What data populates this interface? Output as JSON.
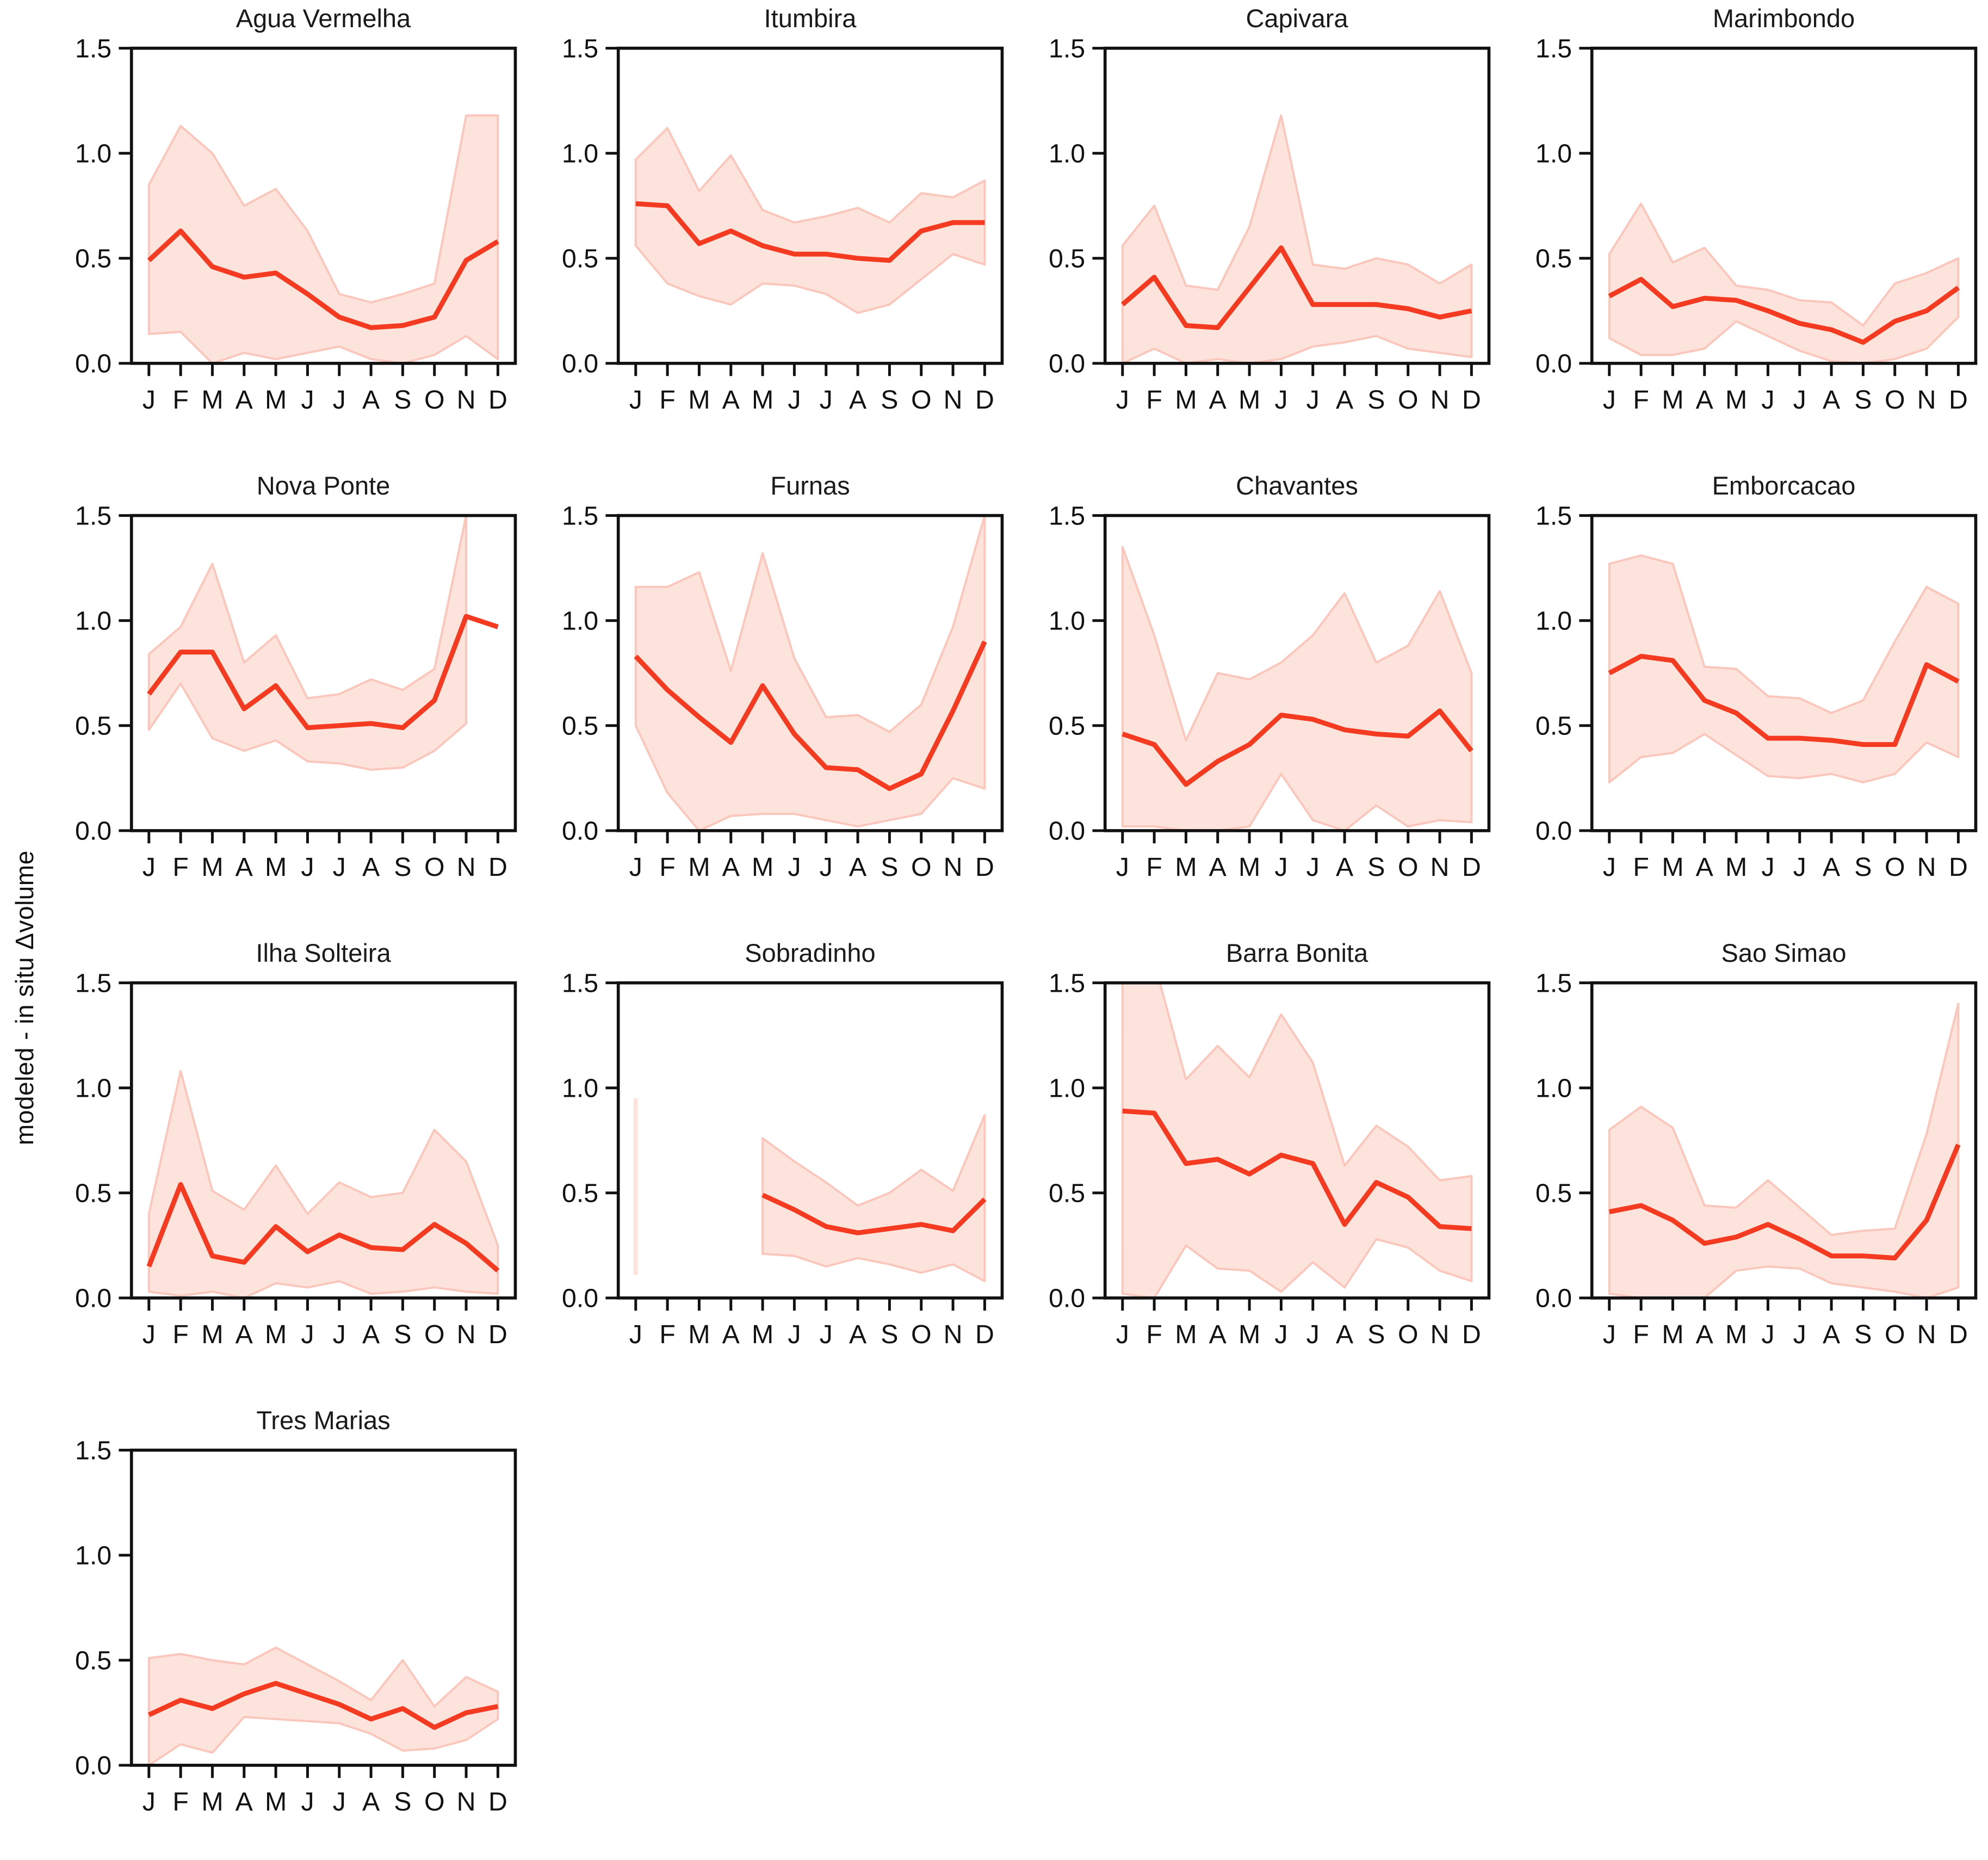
{
  "figure": {
    "ylabel": "modeled - in situ Δvolume",
    "line_color": "#f43a20",
    "band_fill_color": "#fce3dc",
    "band_edge_color": "#fbc7bc",
    "axis_color": "#111111",
    "yticks": [
      0.0,
      0.5,
      1.0,
      1.5
    ],
    "ytick_labels": [
      "0.0",
      "0.5",
      "1.0",
      "1.5"
    ],
    "months": [
      "J",
      "F",
      "M",
      "A",
      "M",
      "J",
      "J",
      "A",
      "S",
      "O",
      "N",
      "D"
    ],
    "ylim": [
      0,
      1.5
    ],
    "grid": "off",
    "legend": "none"
  },
  "chart_data": [
    {
      "type": "line",
      "title": "Agua Vermelha",
      "categories": [
        "J",
        "F",
        "M",
        "A",
        "M",
        "J",
        "J",
        "A",
        "S",
        "O",
        "N",
        "D"
      ],
      "median": [
        0.49,
        0.63,
        0.46,
        0.41,
        0.43,
        0.33,
        0.22,
        0.17,
        0.18,
        0.22,
        0.49,
        0.58
      ],
      "band_upper": [
        0.85,
        1.13,
        1.0,
        0.75,
        0.83,
        0.63,
        0.33,
        0.29,
        0.33,
        0.38,
        1.18,
        1.18
      ],
      "band_lower": [
        0.14,
        0.15,
        0.0,
        0.05,
        0.02,
        0.05,
        0.08,
        0.02,
        0.0,
        0.04,
        0.13,
        0.02
      ]
    },
    {
      "type": "line",
      "title": "Itumbira",
      "categories": [
        "J",
        "F",
        "M",
        "A",
        "M",
        "J",
        "J",
        "A",
        "S",
        "O",
        "N",
        "D"
      ],
      "median": [
        0.76,
        0.75,
        0.57,
        0.63,
        0.56,
        0.52,
        0.52,
        0.5,
        0.49,
        0.63,
        0.67,
        0.67
      ],
      "band_upper": [
        0.97,
        1.12,
        0.82,
        0.99,
        0.73,
        0.67,
        0.7,
        0.74,
        0.67,
        0.81,
        0.79,
        0.87
      ],
      "band_lower": [
        0.56,
        0.38,
        0.32,
        0.28,
        0.38,
        0.37,
        0.33,
        0.24,
        0.28,
        0.4,
        0.52,
        0.47
      ]
    },
    {
      "type": "line",
      "title": "Capivara",
      "categories": [
        "J",
        "F",
        "M",
        "A",
        "M",
        "J",
        "J",
        "A",
        "S",
        "O",
        "N",
        "D"
      ],
      "median": [
        0.28,
        0.41,
        0.18,
        0.17,
        0.36,
        0.55,
        0.28,
        0.28,
        0.28,
        0.26,
        0.22,
        0.25
      ],
      "band_upper": [
        0.56,
        0.75,
        0.37,
        0.35,
        0.65,
        1.18,
        0.47,
        0.45,
        0.5,
        0.47,
        0.38,
        0.47
      ],
      "band_lower": [
        0.0,
        0.07,
        0.0,
        0.02,
        0.0,
        0.02,
        0.08,
        0.1,
        0.13,
        0.07,
        0.05,
        0.03
      ]
    },
    {
      "type": "line",
      "title": "Marimbondo",
      "categories": [
        "J",
        "F",
        "M",
        "A",
        "M",
        "J",
        "J",
        "A",
        "S",
        "O",
        "N",
        "D"
      ],
      "median": [
        0.32,
        0.4,
        0.27,
        0.31,
        0.3,
        0.25,
        0.19,
        0.16,
        0.1,
        0.2,
        0.25,
        0.36
      ],
      "band_upper": [
        0.52,
        0.76,
        0.48,
        0.55,
        0.37,
        0.35,
        0.3,
        0.29,
        0.18,
        0.38,
        0.43,
        0.5
      ],
      "band_lower": [
        0.12,
        0.04,
        0.04,
        0.07,
        0.2,
        0.13,
        0.06,
        0.01,
        0.0,
        0.02,
        0.07,
        0.22
      ]
    },
    {
      "type": "line",
      "title": "Nova Ponte",
      "categories": [
        "J",
        "F",
        "M",
        "A",
        "M",
        "J",
        "J",
        "A",
        "S",
        "O",
        "N",
        "D"
      ],
      "median": [
        0.65,
        0.85,
        0.85,
        0.58,
        0.69,
        0.49,
        0.5,
        0.51,
        0.49,
        0.62,
        1.02,
        0.97
      ],
      "band_upper": [
        0.84,
        0.97,
        1.27,
        0.8,
        0.93,
        0.63,
        0.65,
        0.72,
        0.67,
        0.77,
        1.5,
        null
      ],
      "band_lower": [
        0.48,
        0.7,
        0.44,
        0.38,
        0.43,
        0.33,
        0.32,
        0.29,
        0.3,
        0.38,
        0.51,
        null
      ]
    },
    {
      "type": "line",
      "title": "Furnas",
      "categories": [
        "J",
        "F",
        "M",
        "A",
        "M",
        "J",
        "J",
        "A",
        "S",
        "O",
        "N",
        "D"
      ],
      "median": [
        0.83,
        0.67,
        0.54,
        0.42,
        0.69,
        0.46,
        0.3,
        0.29,
        0.2,
        0.27,
        0.57,
        0.9
      ],
      "band_upper": [
        1.16,
        1.16,
        1.23,
        0.76,
        1.32,
        0.82,
        0.54,
        0.55,
        0.47,
        0.6,
        0.97,
        1.5
      ],
      "band_lower": [
        0.5,
        0.18,
        0.0,
        0.07,
        0.08,
        0.08,
        0.05,
        0.02,
        0.05,
        0.08,
        0.25,
        0.2
      ]
    },
    {
      "type": "line",
      "title": "Chavantes",
      "categories": [
        "J",
        "F",
        "M",
        "A",
        "M",
        "J",
        "J",
        "A",
        "S",
        "O",
        "N",
        "D"
      ],
      "median": [
        0.46,
        0.41,
        0.22,
        0.33,
        0.41,
        0.55,
        0.53,
        0.48,
        0.46,
        0.45,
        0.57,
        0.38
      ],
      "band_upper": [
        1.35,
        0.93,
        0.43,
        0.75,
        0.72,
        0.8,
        0.93,
        1.13,
        0.8,
        0.88,
        1.14,
        0.75
      ],
      "band_lower": [
        0.02,
        0.02,
        0.0,
        0.0,
        0.02,
        0.27,
        0.05,
        0.0,
        0.12,
        0.02,
        0.05,
        0.04
      ]
    },
    {
      "type": "line",
      "title": "Emborcacao",
      "categories": [
        "J",
        "F",
        "M",
        "A",
        "M",
        "J",
        "J",
        "A",
        "S",
        "O",
        "N",
        "D"
      ],
      "median": [
        0.75,
        0.83,
        0.81,
        0.62,
        0.56,
        0.44,
        0.44,
        0.43,
        0.41,
        0.41,
        0.79,
        0.71
      ],
      "band_upper": [
        1.27,
        1.31,
        1.27,
        0.78,
        0.77,
        0.64,
        0.63,
        0.56,
        0.62,
        0.9,
        1.16,
        1.08
      ],
      "band_lower": [
        0.23,
        0.35,
        0.37,
        0.46,
        0.36,
        0.26,
        0.25,
        0.27,
        0.23,
        0.27,
        0.42,
        0.35
      ]
    },
    {
      "type": "line",
      "title": "Ilha Solteira",
      "categories": [
        "J",
        "F",
        "M",
        "A",
        "M",
        "J",
        "J",
        "A",
        "S",
        "O",
        "N",
        "D"
      ],
      "median": [
        0.15,
        0.54,
        0.2,
        0.17,
        0.34,
        0.22,
        0.3,
        0.24,
        0.23,
        0.35,
        0.26,
        0.13
      ],
      "band_upper": [
        0.4,
        1.08,
        0.51,
        0.42,
        0.63,
        0.4,
        0.55,
        0.48,
        0.5,
        0.8,
        0.65,
        0.25
      ],
      "band_lower": [
        0.03,
        0.01,
        0.03,
        0.0,
        0.07,
        0.05,
        0.08,
        0.02,
        0.03,
        0.05,
        0.03,
        0.02
      ]
    },
    {
      "type": "line",
      "title": "Sobradinho",
      "categories": [
        "J",
        "F",
        "M",
        "A",
        "M",
        "J",
        "J",
        "A",
        "S",
        "O",
        "N",
        "D"
      ],
      "median": [
        null,
        null,
        null,
        null,
        0.49,
        0.42,
        0.34,
        0.31,
        0.33,
        0.35,
        0.32,
        0.47
      ],
      "band_upper": [
        0.95,
        null,
        null,
        null,
        0.76,
        0.65,
        0.55,
        0.44,
        0.5,
        0.61,
        0.51,
        0.87
      ],
      "band_lower": [
        0.11,
        null,
        null,
        null,
        0.21,
        0.2,
        0.15,
        0.19,
        0.16,
        0.12,
        0.16,
        0.08
      ]
    },
    {
      "type": "line",
      "title": "Barra Bonita",
      "categories": [
        "J",
        "F",
        "M",
        "A",
        "M",
        "J",
        "J",
        "A",
        "S",
        "O",
        "N",
        "D"
      ],
      "median": [
        0.89,
        0.88,
        0.64,
        0.66,
        0.59,
        0.68,
        0.64,
        0.35,
        0.55,
        0.48,
        0.34,
        0.33
      ],
      "band_upper": [
        1.6,
        1.6,
        1.04,
        1.2,
        1.05,
        1.35,
        1.12,
        0.63,
        0.82,
        0.72,
        0.56,
        0.58
      ],
      "band_lower": [
        0.02,
        0.0,
        0.25,
        0.14,
        0.13,
        0.03,
        0.17,
        0.05,
        0.28,
        0.24,
        0.13,
        0.08
      ]
    },
    {
      "type": "line",
      "title": "Sao Simao",
      "categories": [
        "J",
        "F",
        "M",
        "A",
        "M",
        "J",
        "J",
        "A",
        "S",
        "O",
        "N",
        "D"
      ],
      "median": [
        0.41,
        0.44,
        0.37,
        0.26,
        0.29,
        0.35,
        0.28,
        0.2,
        0.2,
        0.19,
        0.37,
        0.73
      ],
      "band_upper": [
        0.8,
        0.91,
        0.81,
        0.44,
        0.43,
        0.56,
        0.43,
        0.3,
        0.32,
        0.33,
        0.78,
        1.4
      ],
      "band_lower": [
        0.02,
        0.0,
        0.0,
        0.0,
        0.13,
        0.15,
        0.14,
        0.07,
        0.05,
        0.03,
        0.0,
        0.05
      ]
    },
    {
      "type": "line",
      "title": "Tres Marias",
      "categories": [
        "J",
        "F",
        "M",
        "A",
        "M",
        "J",
        "J",
        "A",
        "S",
        "O",
        "N",
        "D"
      ],
      "median": [
        0.24,
        0.31,
        0.27,
        0.34,
        0.39,
        0.34,
        0.29,
        0.22,
        0.27,
        0.18,
        0.25,
        0.28
      ],
      "band_upper": [
        0.51,
        0.53,
        0.5,
        0.48,
        0.56,
        0.48,
        0.4,
        0.31,
        0.5,
        0.28,
        0.42,
        0.35
      ],
      "band_lower": [
        0.0,
        0.1,
        0.06,
        0.23,
        0.22,
        0.21,
        0.2,
        0.15,
        0.07,
        0.08,
        0.12,
        0.22
      ]
    }
  ]
}
